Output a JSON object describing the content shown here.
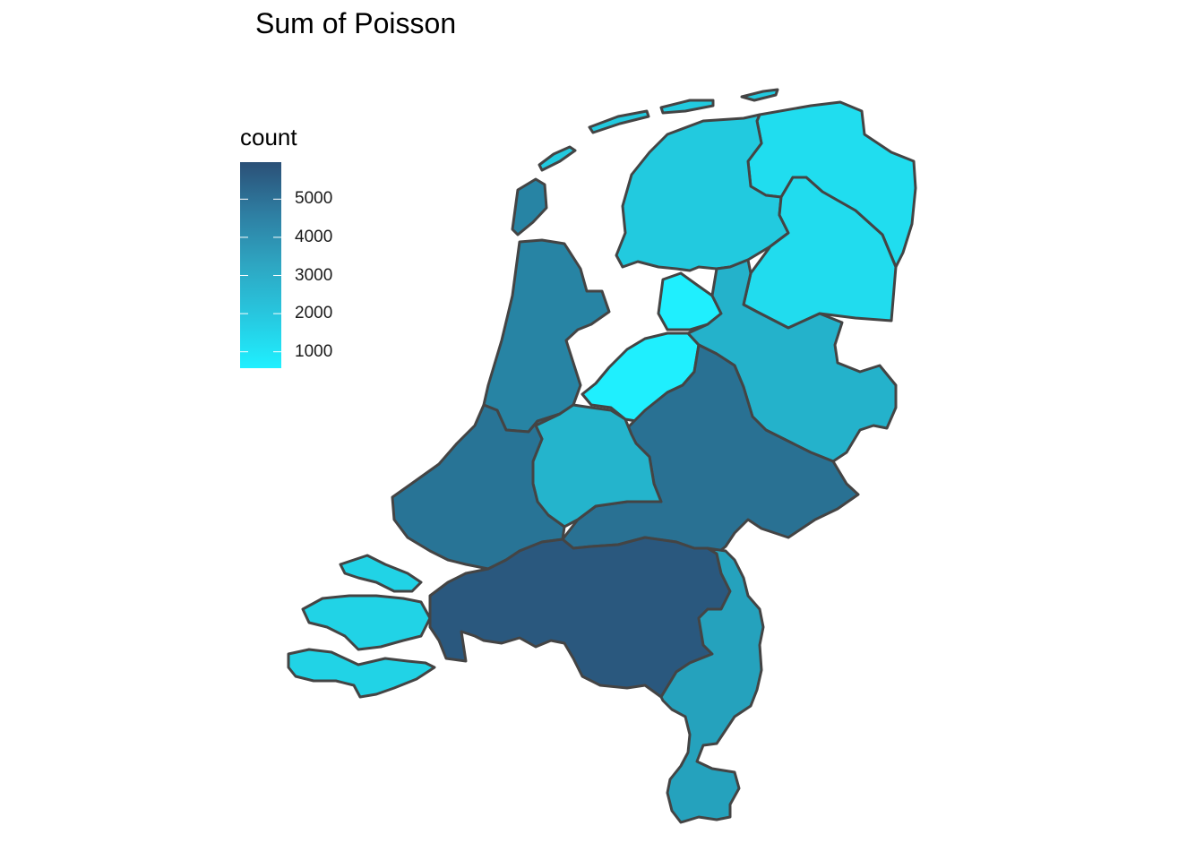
{
  "title": "Sum of Poisson",
  "legend": {
    "title": "count",
    "ticks": [
      5000,
      4000,
      3000,
      2000,
      1000
    ],
    "tick_labels": [
      "5000",
      "4000",
      "3000",
      "2000",
      "1000"
    ],
    "range": [
      570,
      5970
    ],
    "color_low": "#1ff0ff",
    "color_high": "#2b5077"
  },
  "map_data": {
    "regions": [
      {
        "id": "groningen",
        "value": 1200
      },
      {
        "id": "friesland",
        "value": 1850
      },
      {
        "id": "drenthe",
        "value": 1250
      },
      {
        "id": "noord-holland",
        "value": 4200
      },
      {
        "id": "flevoland",
        "value": 600
      },
      {
        "id": "overijssel",
        "value": 2650
      },
      {
        "id": "gelderland",
        "value": 4850
      },
      {
        "id": "utrecht",
        "value": 2600
      },
      {
        "id": "zuid-holland",
        "value": 4750
      },
      {
        "id": "zeeland",
        "value": 1550
      },
      {
        "id": "noord-brabant",
        "value": 5700
      },
      {
        "id": "limburg",
        "value": 3200
      }
    ]
  }
}
